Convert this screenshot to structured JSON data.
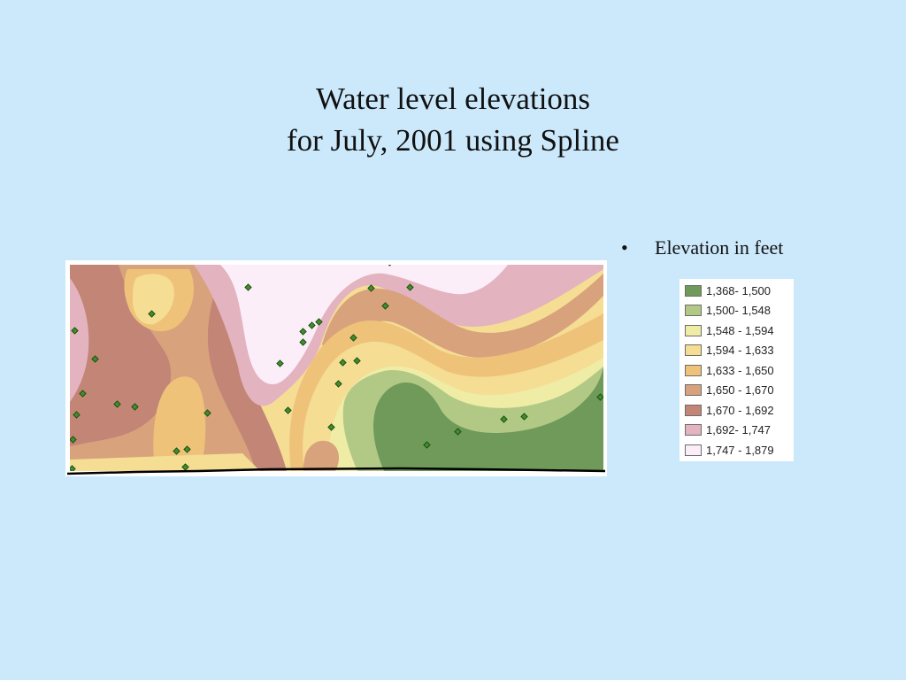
{
  "title": {
    "line1": "Water level elevations",
    "line2": "for July, 2001 using Spline"
  },
  "bullet": {
    "symbol": "•",
    "text": "Elevation in feet"
  },
  "legend": {
    "items": [
      {
        "label": "1,368- 1,500",
        "color": "#6f9a5a"
      },
      {
        "label": "1,500- 1,548",
        "color": "#b2c986"
      },
      {
        "label": "1,548 - 1,594",
        "color": "#efeca6"
      },
      {
        "label": "1,594 - 1,633",
        "color": "#f5dd94"
      },
      {
        "label": "1,633 - 1,650",
        "color": "#efc27a"
      },
      {
        "label": "1,650 - 1,670",
        "color": "#d8a27c"
      },
      {
        "label": "1,670 - 1,692",
        "color": "#c28576"
      },
      {
        "label": "1,692- 1,747",
        "color": "#e3b3bf"
      },
      {
        "label": "1,747 - 1,879",
        "color": "#fbeef8"
      }
    ]
  },
  "map": {
    "well_marker_color": "#3f8f2a"
  }
}
